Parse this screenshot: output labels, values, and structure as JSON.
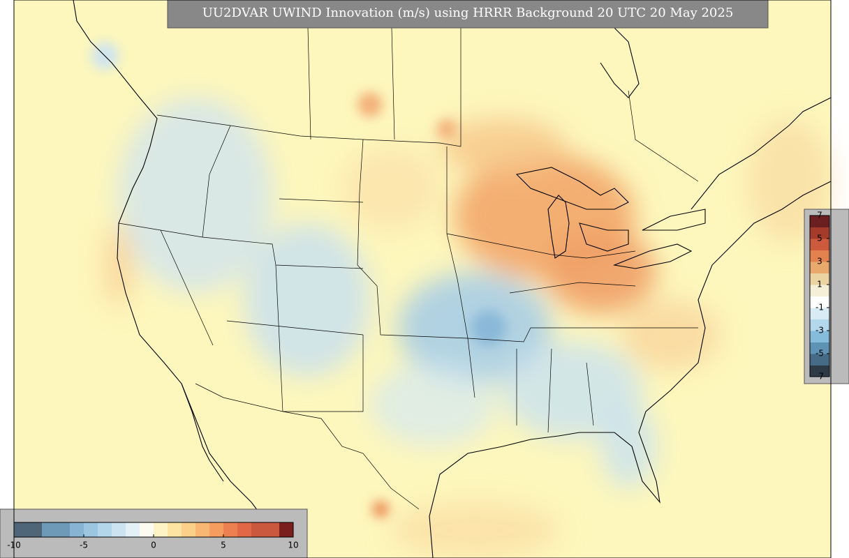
{
  "title": "UU2DVAR UWIND Innovation (m/s) using HRRR Background 20 UTC 20 May 2025",
  "colorbars": [
    {
      "orientation": "vertical",
      "lim": [
        -7,
        7
      ],
      "ticks": [
        7,
        5,
        3,
        1,
        -1,
        -3,
        -5,
        -7
      ],
      "colors": [
        "#2e3a46",
        "#456b86",
        "#5f93b5",
        "#86bcdb",
        "#b3d7eb",
        "#d9ecf5",
        "#ffffff",
        "#f4efd6",
        "#ebd3a2",
        "#eaa96c",
        "#e3824f",
        "#cc5b3d",
        "#a43b2b",
        "#6b1f20"
      ]
    },
    {
      "orientation": "horizontal",
      "lim": [
        -10,
        10
      ],
      "ticks": [
        -10,
        -5,
        0,
        5,
        10
      ],
      "colors": [
        "#4f6678",
        "#4f6678",
        "#6e9ab8",
        "#6e9ab8",
        "#86b4d2",
        "#9cc6df",
        "#b4d6ea",
        "#cce4f1",
        "#e3f0f6",
        "#fbfbf2",
        "#fdf3c4",
        "#fde4a2",
        "#fcd08a",
        "#f8b773",
        "#f49d5f",
        "#ec8050",
        "#e06846",
        "#c9583e",
        "#c9583e",
        "#7a1f1d"
      ]
    }
  ]
}
